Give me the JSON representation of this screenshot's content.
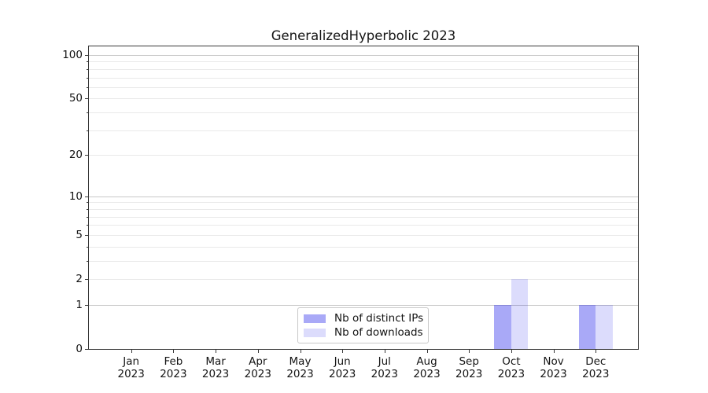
{
  "figure": {
    "background": "#ffffff"
  },
  "chart_data": {
    "type": "bar",
    "title": "GeneralizedHyperbolic 2023",
    "categories": [
      "Jan",
      "Feb",
      "Mar",
      "Apr",
      "May",
      "Jun",
      "Jul",
      "Aug",
      "Sep",
      "Oct",
      "Nov",
      "Dec"
    ],
    "category_year": "2023",
    "series": [
      {
        "name": "Nb of distinct IPs",
        "color": "rgba(40,40,235,0.40)",
        "values": [
          0,
          0,
          0,
          0,
          0,
          0,
          0,
          0,
          0,
          1,
          0,
          1
        ]
      },
      {
        "name": "Nb of downloads",
        "color": "rgba(40,40,235,0.16)",
        "values": [
          0,
          0,
          0,
          0,
          0,
          0,
          0,
          0,
          0,
          2,
          0,
          1
        ]
      }
    ],
    "bar_width": 0.4,
    "xlim": [
      -1,
      12
    ],
    "ylim": [
      0,
      114.6
    ],
    "y_scale": "log1p",
    "y_major_ticks": [
      0,
      1,
      2,
      5,
      10,
      20,
      50,
      100
    ],
    "y_major_gridlines": [
      1,
      10,
      100
    ],
    "y_minor_gridlines": [
      2,
      3,
      4,
      5,
      6,
      7,
      8,
      9,
      20,
      30,
      40,
      50,
      60,
      70,
      80,
      90
    ],
    "y_minor_tickmarks": [
      3,
      4,
      6,
      7,
      8,
      9,
      30,
      40,
      60,
      70,
      80,
      90
    ],
    "grid": true,
    "legend": {
      "location": "lower center",
      "entries": [
        "Nb of distinct IPs",
        "Nb of downloads"
      ]
    }
  },
  "style": {
    "grid_major_color": "#c8c8c8",
    "grid_minor_color": "#e9e9e9",
    "spine_color": "#383838",
    "text_color": "#141414",
    "legend_border_color": "#c9c9c9",
    "legend_background": "#ffffff"
  }
}
